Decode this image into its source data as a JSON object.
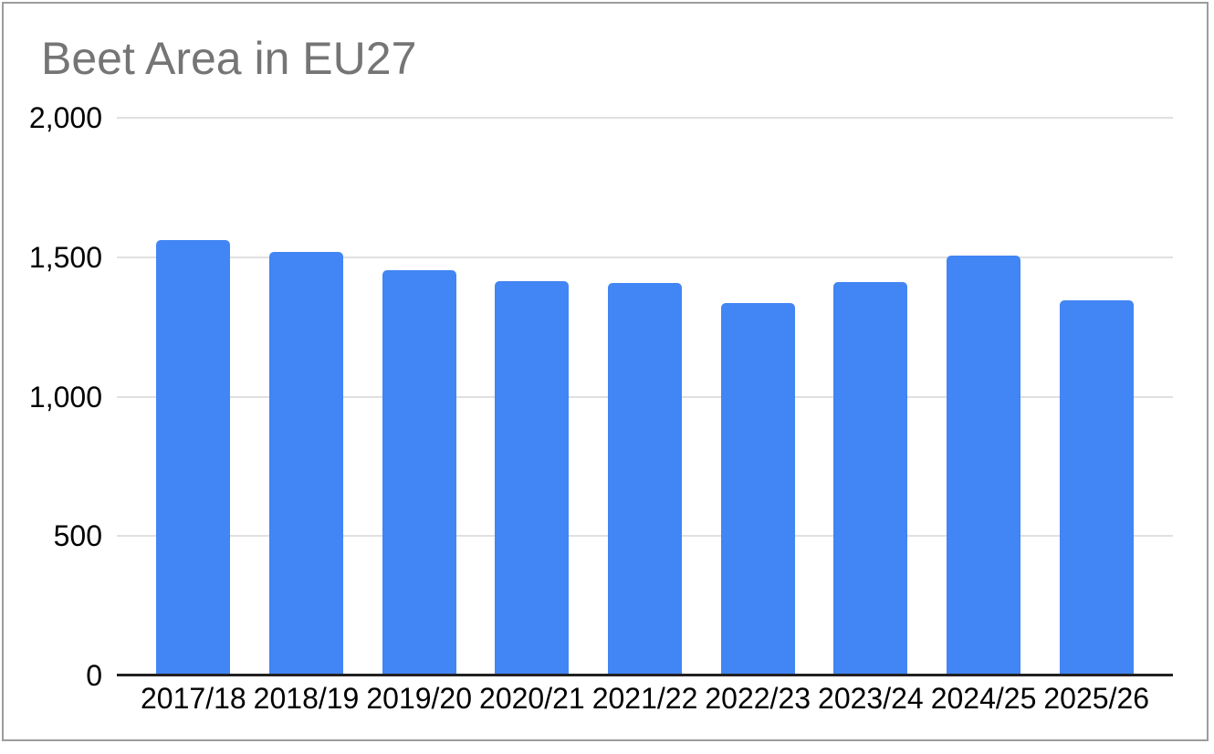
{
  "window": {
    "background": "#ffffff",
    "border_color": "#9c9c9c"
  },
  "chart_data": {
    "type": "bar",
    "title": "Beet Area in EU27",
    "categories": [
      "2017/18",
      "2018/19",
      "2019/20",
      "2020/21",
      "2021/22",
      "2022/23",
      "2023/24",
      "2024/25",
      "2025/26"
    ],
    "values": [
      1563,
      1519,
      1453,
      1413,
      1407,
      1335,
      1410,
      1506,
      1347
    ],
    "xlabel": "",
    "ylabel": "",
    "ylim": [
      0,
      2000
    ],
    "yticks": [
      {
        "value": 0,
        "label": "0"
      },
      {
        "value": 500,
        "label": "500"
      },
      {
        "value": 1000,
        "label": "1,000"
      },
      {
        "value": 1500,
        "label": "1,500"
      },
      {
        "value": 2000,
        "label": "2,000"
      }
    ],
    "grid": "horizontal",
    "legend": "none",
    "style": {
      "bar_color": "#4285F4",
      "title_color": "#757575",
      "label_color": "#000000",
      "gridline_color": "#e0e0e0",
      "axis_line_color": "#212121"
    }
  }
}
